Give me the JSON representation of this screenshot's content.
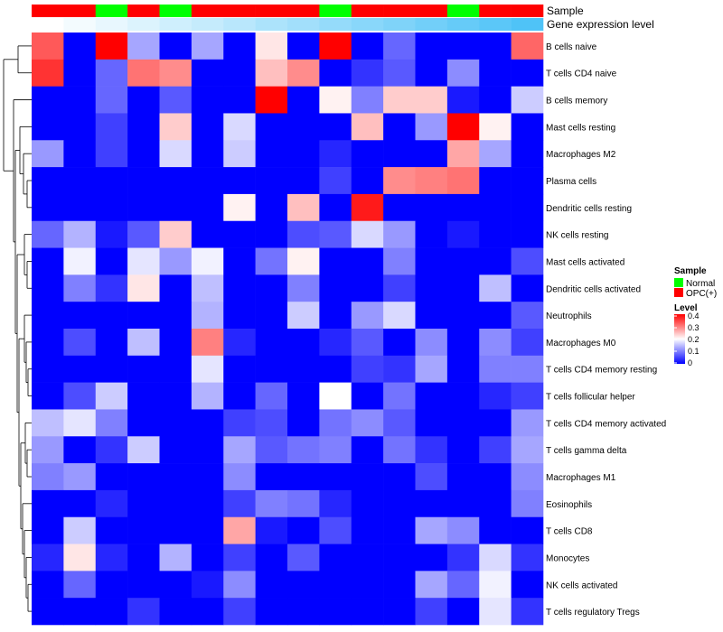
{
  "chart_data": {
    "type": "heatmap",
    "annotations": {
      "sample_title": "Sample",
      "level_title": "Gene expression level",
      "sample_groups": [
        "OPC(+)",
        "OPC(+)",
        "Normal",
        "OPC(+)",
        "Normal",
        "OPC(+)",
        "OPC(+)",
        "OPC(+)",
        "OPC(+)",
        "Normal",
        "OPC(+)",
        "OPC(+)",
        "OPC(+)",
        "Normal",
        "OPC(+)",
        "OPC(+)"
      ],
      "sample_colors": {
        "Normal": "#00ff00",
        "OPC(+)": "#ff0000"
      },
      "gene_expression_level": [
        0.0,
        0.07,
        0.13,
        0.2,
        0.27,
        0.33,
        0.4,
        0.47,
        0.53,
        0.6,
        0.67,
        0.73,
        0.8,
        0.87,
        0.93,
        1.0
      ]
    },
    "rows": [
      "B cells naive",
      "T cells CD4 naive",
      "B cells memory",
      "Mast cells resting",
      "Macrophages M2",
      "Plasma cells",
      "Dendritic cells resting",
      "NK cells resting",
      "Mast cells activated",
      "Dendritic cells activated",
      "Neutrophils",
      "Macrophages M0",
      "T cells CD4 memory resting",
      "T cells follicular helper",
      "T cells CD4 memory activated",
      "T cells gamma delta",
      "Macrophages M1",
      "Eosinophils",
      "T cells CD8",
      "Monocytes",
      "NK cells activated",
      "T cells regulatory  Tregs"
    ],
    "values": [
      [
        0.33,
        0.0,
        0.4,
        0.13,
        0.0,
        0.13,
        0.0,
        0.22,
        0.0,
        0.4,
        0.0,
        0.08,
        0.0,
        0.0,
        0.0,
        0.32
      ],
      [
        0.36,
        0.0,
        0.08,
        0.31,
        0.29,
        0.0,
        0.0,
        0.25,
        0.29,
        0.0,
        0.04,
        0.07,
        0.0,
        0.11,
        0.0,
        0.0
      ],
      [
        0.0,
        0.0,
        0.08,
        0.0,
        0.07,
        0.0,
        0.0,
        0.4,
        0.0,
        0.21,
        0.1,
        0.24,
        0.24,
        0.02,
        0.0,
        0.16
      ],
      [
        0.0,
        0.0,
        0.05,
        0.0,
        0.24,
        0.0,
        0.17,
        0.0,
        0.0,
        0.0,
        0.25,
        0.0,
        0.12,
        0.4,
        0.21,
        0.0
      ],
      [
        0.12,
        0.0,
        0.05,
        0.0,
        0.17,
        0.0,
        0.16,
        0.0,
        0.0,
        0.03,
        0.0,
        0.0,
        0.0,
        0.27,
        0.13,
        0.0
      ],
      [
        0.0,
        0.0,
        0.0,
        0.0,
        0.0,
        0.0,
        0.0,
        0.0,
        0.0,
        0.05,
        0.0,
        0.29,
        0.3,
        0.31,
        0.0,
        0.0
      ],
      [
        0.0,
        0.0,
        0.0,
        0.0,
        0.0,
        0.0,
        0.21,
        0.0,
        0.25,
        0.0,
        0.38,
        0.0,
        0.0,
        0.0,
        0.0,
        0.0
      ],
      [
        0.08,
        0.14,
        0.02,
        0.07,
        0.24,
        0.0,
        0.0,
        0.0,
        0.06,
        0.07,
        0.17,
        0.12,
        0.0,
        0.02,
        0.0,
        0.0
      ],
      [
        0.0,
        0.19,
        0.0,
        0.18,
        0.12,
        0.19,
        0.0,
        0.09,
        0.21,
        0.0,
        0.0,
        0.1,
        0.0,
        0.0,
        0.0,
        0.06
      ],
      [
        0.0,
        0.1,
        0.04,
        0.22,
        0.0,
        0.15,
        0.0,
        0.0,
        0.1,
        0.0,
        0.0,
        0.05,
        0.0,
        0.0,
        0.15,
        0.0
      ],
      [
        0.0,
        0.0,
        0.0,
        0.0,
        0.0,
        0.14,
        0.0,
        0.0,
        0.16,
        0.0,
        0.12,
        0.17,
        0.0,
        0.0,
        0.0,
        0.07
      ],
      [
        0.0,
        0.06,
        0.0,
        0.15,
        0.0,
        0.3,
        0.03,
        0.0,
        0.0,
        0.03,
        0.07,
        0.0,
        0.11,
        0.0,
        0.11,
        0.05
      ],
      [
        0.0,
        0.0,
        0.0,
        0.0,
        0.0,
        0.18,
        0.0,
        0.0,
        0.0,
        0.0,
        0.05,
        0.04,
        0.13,
        0.0,
        0.1,
        0.1
      ],
      [
        0.0,
        0.06,
        0.16,
        0.0,
        0.0,
        0.14,
        0.0,
        0.08,
        0.0,
        0.2,
        0.0,
        0.09,
        0.0,
        0.0,
        0.03,
        0.05
      ],
      [
        0.15,
        0.18,
        0.1,
        0.0,
        0.0,
        0.0,
        0.05,
        0.06,
        0.0,
        0.09,
        0.11,
        0.07,
        0.0,
        0.0,
        0.0,
        0.12
      ],
      [
        0.12,
        0.0,
        0.04,
        0.16,
        0.0,
        0.0,
        0.13,
        0.07,
        0.09,
        0.1,
        0.0,
        0.09,
        0.04,
        0.0,
        0.05,
        0.13
      ],
      [
        0.1,
        0.12,
        0.0,
        0.0,
        0.0,
        0.0,
        0.11,
        0.0,
        0.0,
        0.0,
        0.0,
        0.0,
        0.06,
        0.0,
        0.0,
        0.11
      ],
      [
        0.0,
        0.0,
        0.03,
        0.0,
        0.0,
        0.0,
        0.05,
        0.1,
        0.09,
        0.03,
        0.0,
        0.0,
        0.0,
        0.0,
        0.0,
        0.1
      ],
      [
        0.0,
        0.16,
        0.0,
        0.0,
        0.0,
        0.0,
        0.27,
        0.02,
        0.0,
        0.06,
        0.0,
        0.0,
        0.13,
        0.11,
        0.0,
        0.0
      ],
      [
        0.03,
        0.22,
        0.03,
        0.0,
        0.14,
        0.0,
        0.05,
        0.0,
        0.07,
        0.0,
        0.0,
        0.0,
        0.0,
        0.04,
        0.17,
        0.04
      ],
      [
        0.0,
        0.08,
        0.0,
        0.0,
        0.0,
        0.02,
        0.11,
        0.0,
        0.0,
        0.0,
        0.0,
        0.0,
        0.13,
        0.08,
        0.19,
        0.0
      ],
      [
        0.0,
        0.0,
        0.0,
        0.04,
        0.0,
        0.0,
        0.05,
        0.0,
        0.0,
        0.0,
        0.0,
        0.0,
        0.05,
        0.0,
        0.18,
        0.04
      ]
    ],
    "legend": {
      "sample_title": "Sample",
      "sample_entries": [
        "Normal",
        "OPC(+)"
      ],
      "level_title": "Level",
      "level_ticks": [
        "0.4",
        "0.3",
        "0.2",
        "0.1",
        "0"
      ],
      "level_min": 0,
      "level_max": 0.4
    },
    "colors": {
      "low": "#0000ff",
      "mid": "#ffffff",
      "high": "#ff0000",
      "anno_low": "#ffffff",
      "anno_high": "#4fc3f7"
    }
  }
}
